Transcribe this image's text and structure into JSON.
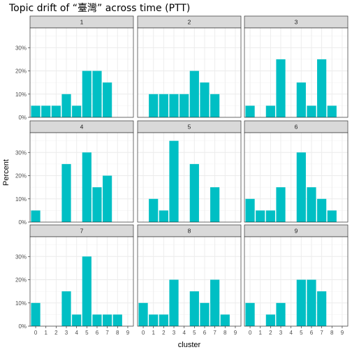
{
  "chart_data": {
    "type": "bar",
    "title": "Topic drift of “臺灣” across time (PTT)",
    "xlabel": "cluster",
    "ylabel": "Percent",
    "categories": [
      "0",
      "1",
      "2",
      "3",
      "4",
      "5",
      "6",
      "7",
      "8",
      "9"
    ],
    "y_ticks": [
      "0%",
      "10%",
      "20%",
      "30%"
    ],
    "ylim": [
      0,
      38.5
    ],
    "grid": true,
    "bar_color": "#00BFC4",
    "strip_color": "#D9D9D9",
    "facets": [
      {
        "label": "1",
        "values": [
          5,
          5,
          5,
          10,
          5,
          20,
          20,
          15,
          0,
          0
        ]
      },
      {
        "label": "2",
        "values": [
          0,
          10,
          10,
          10,
          10,
          20,
          15,
          10,
          0,
          0
        ]
      },
      {
        "label": "3",
        "values": [
          5,
          0,
          5,
          25,
          0,
          15,
          5,
          25,
          5,
          0
        ]
      },
      {
        "label": "4",
        "values": [
          5,
          0,
          0,
          25,
          0,
          30,
          15,
          20,
          0,
          0
        ]
      },
      {
        "label": "5",
        "values": [
          0,
          10,
          5,
          35,
          0,
          25,
          0,
          15,
          0,
          0
        ]
      },
      {
        "label": "6",
        "values": [
          10,
          5,
          5,
          15,
          0,
          30,
          15,
          10,
          5,
          0
        ]
      },
      {
        "label": "7",
        "values": [
          10,
          0,
          0,
          15,
          5,
          30,
          5,
          5,
          5,
          0
        ]
      },
      {
        "label": "8",
        "values": [
          10,
          5,
          5,
          20,
          0,
          15,
          10,
          20,
          5,
          0
        ]
      },
      {
        "label": "9",
        "values": [
          10,
          0,
          5,
          10,
          0,
          20,
          20,
          15,
          0,
          0
        ]
      }
    ]
  }
}
